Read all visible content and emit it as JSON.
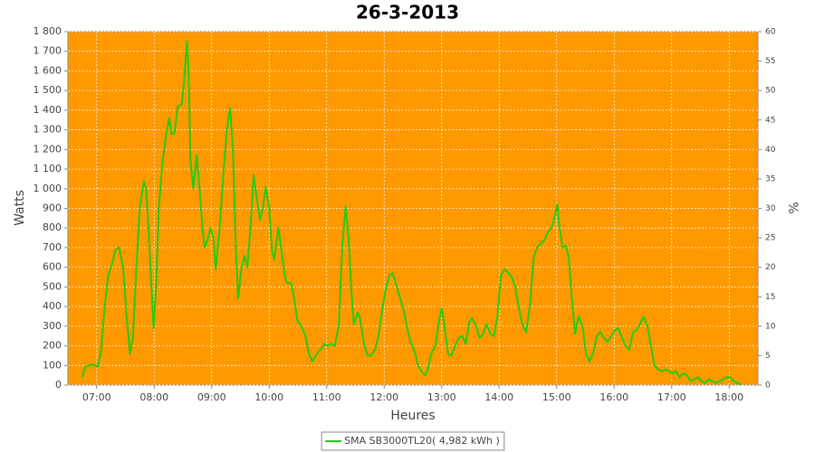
{
  "chart_data": {
    "type": "line",
    "title": "26-3-2013",
    "x_label": "Heures",
    "y_label": "Watts",
    "y2_label": "%",
    "plot_background": "#ff9900",
    "grid": true,
    "legend": "bottom",
    "xlim": [
      6.5,
      18.5
    ],
    "xticks": [
      {
        "value": 7,
        "label": "07:00"
      },
      {
        "value": 8,
        "label": "08:00"
      },
      {
        "value": 9,
        "label": "09:00"
      },
      {
        "value": 10,
        "label": "10:00"
      },
      {
        "value": 11,
        "label": "11:00"
      },
      {
        "value": 12,
        "label": "12:00"
      },
      {
        "value": 13,
        "label": "13:00"
      },
      {
        "value": 14,
        "label": "14:00"
      },
      {
        "value": 15,
        "label": "15:00"
      },
      {
        "value": 16,
        "label": "16:00"
      },
      {
        "value": 17,
        "label": "17:00"
      },
      {
        "value": 18,
        "label": "18:00"
      }
    ],
    "ylim": [
      0,
      1800
    ],
    "yticks": [
      0,
      100,
      200,
      300,
      400,
      500,
      600,
      700,
      800,
      900,
      {
        "value": 1000,
        "label": "1 000"
      },
      {
        "value": 1100,
        "label": "1 100"
      },
      {
        "value": 1200,
        "label": "1 200"
      },
      {
        "value": 1300,
        "label": "1 300"
      },
      {
        "value": 1400,
        "label": "1 400"
      },
      {
        "value": 1500,
        "label": "1 500"
      },
      {
        "value": 1600,
        "label": "1 600"
      },
      {
        "value": 1700,
        "label": "1 700"
      },
      {
        "value": 1800,
        "label": "1 800"
      }
    ],
    "y2lim": [
      0,
      60
    ],
    "y2ticks": [
      0,
      5,
      10,
      15,
      20,
      25,
      30,
      35,
      40,
      45,
      50,
      55,
      60
    ],
    "x": [
      6.75,
      6.8,
      6.86,
      6.94,
      7.02,
      7.08,
      7.14,
      7.2,
      7.27,
      7.33,
      7.39,
      7.46,
      7.52,
      7.58,
      7.63,
      7.69,
      7.75,
      7.82,
      7.86,
      7.91,
      7.99,
      8.04,
      8.08,
      8.15,
      8.21,
      8.26,
      8.3,
      8.35,
      8.41,
      8.48,
      8.52,
      8.57,
      8.6,
      8.63,
      8.68,
      8.74,
      8.79,
      8.84,
      8.88,
      8.93,
      8.98,
      9.03,
      9.07,
      9.14,
      9.2,
      9.26,
      9.32,
      9.37,
      9.42,
      9.46,
      9.51,
      9.57,
      9.62,
      9.67,
      9.73,
      9.78,
      9.84,
      9.89,
      9.94,
      10.0,
      10.05,
      10.09,
      10.16,
      10.2,
      10.27,
      10.31,
      10.38,
      10.42,
      10.49,
      10.56,
      10.63,
      10.69,
      10.75,
      10.83,
      10.89,
      10.96,
      11.02,
      11.07,
      11.14,
      11.21,
      11.27,
      11.33,
      11.38,
      11.43,
      11.47,
      11.54,
      11.58,
      11.65,
      11.71,
      11.77,
      11.84,
      11.9,
      11.96,
      12.02,
      12.09,
      12.15,
      12.21,
      12.28,
      12.34,
      12.4,
      12.46,
      12.53,
      12.59,
      12.65,
      12.71,
      12.76,
      12.82,
      12.89,
      12.95,
      13.0,
      13.04,
      13.11,
      13.17,
      13.23,
      13.3,
      13.36,
      13.42,
      13.48,
      13.53,
      13.59,
      13.66,
      13.72,
      13.78,
      13.85,
      13.91,
      13.97,
      14.03,
      14.1,
      14.16,
      14.22,
      14.28,
      14.35,
      14.41,
      14.47,
      14.54,
      14.6,
      14.66,
      14.72,
      14.79,
      14.85,
      14.91,
      14.96,
      15.01,
      15.05,
      15.1,
      15.16,
      15.21,
      15.26,
      15.32,
      15.38,
      15.45,
      15.51,
      15.57,
      15.64,
      15.7,
      15.76,
      15.82,
      15.89,
      15.95,
      16.01,
      16.07,
      16.14,
      16.2,
      16.26,
      16.33,
      16.39,
      16.45,
      16.51,
      16.58,
      16.64,
      16.7,
      16.77,
      16.83,
      16.89,
      16.95,
      17.02,
      17.08,
      17.14,
      17.21,
      17.27,
      17.33,
      17.39,
      17.46,
      17.52,
      17.58,
      17.64,
      17.71,
      17.77,
      17.83,
      17.9,
      17.96,
      18.02,
      18.08,
      18.15,
      18.21
    ],
    "series": [
      {
        "name": "SMA SB3000TL20( 4,982 kWh )",
        "color": "#22cc11",
        "values": [
          40,
          90,
          100,
          105,
          95,
          180,
          400,
          560,
          620,
          690,
          700,
          600,
          350,
          160,
          240,
          600,
          900,
          1040,
          1000,
          750,
          290,
          550,
          900,
          1150,
          1280,
          1360,
          1280,
          1280,
          1420,
          1430,
          1550,
          1750,
          1600,
          1150,
          1000,
          1170,
          1000,
          800,
          700,
          740,
          800,
          750,
          590,
          800,
          1060,
          1290,
          1410,
          1200,
          700,
          440,
          580,
          660,
          600,
          780,
          1070,
          960,
          840,
          900,
          1010,
          900,
          680,
          640,
          800,
          720,
          560,
          520,
          520,
          470,
          330,
          300,
          250,
          160,
          120,
          160,
          180,
          210,
          200,
          210,
          200,
          300,
          700,
          910,
          750,
          480,
          310,
          370,
          340,
          210,
          150,
          150,
          180,
          250,
          370,
          480,
          560,
          570,
          510,
          440,
          380,
          290,
          220,
          170,
          100,
          70,
          50,
          80,
          160,
          200,
          320,
          390,
          320,
          160,
          150,
          200,
          240,
          250,
          210,
          320,
          340,
          310,
          240,
          260,
          310,
          260,
          250,
          350,
          560,
          590,
          570,
          550,
          500,
          380,
          300,
          270,
          420,
          650,
          700,
          720,
          740,
          780,
          800,
          850,
          920,
          800,
          700,
          710,
          650,
          450,
          260,
          350,
          300,
          160,
          120,
          170,
          250,
          270,
          240,
          220,
          250,
          280,
          290,
          240,
          200,
          180,
          270,
          280,
          310,
          350,
          300,
          200,
          100,
          80,
          70,
          80,
          70,
          60,
          70,
          40,
          60,
          50,
          20,
          30,
          40,
          20,
          10,
          30,
          20,
          10,
          20,
          30,
          40,
          40,
          20,
          10,
          0
        ]
      }
    ]
  }
}
